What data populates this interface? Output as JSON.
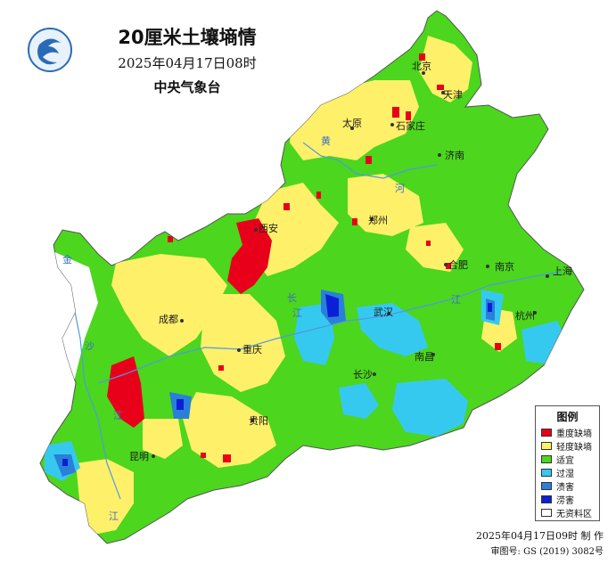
{
  "title": {
    "main": "20厘米土壤墒情",
    "time": "2025年04月17日08时",
    "org": "中央气象台"
  },
  "legend": {
    "title": "图例",
    "items": [
      {
        "label": "重度缺墒",
        "color": "#e8001a"
      },
      {
        "label": "轻度缺墒",
        "color": "#fff06a"
      },
      {
        "label": "适宜",
        "color": "#4cd61e"
      },
      {
        "label": "过湿",
        "color": "#36c9f0"
      },
      {
        "label": "渍害",
        "color": "#2a7fd9"
      },
      {
        "label": "涝害",
        "color": "#0a1fd6"
      },
      {
        "label": "无资料区",
        "color": "#ffffff"
      }
    ]
  },
  "cities": [
    {
      "name": "北京"
    },
    {
      "name": "天津"
    },
    {
      "name": "太原"
    },
    {
      "name": "石家庄"
    },
    {
      "name": "济南"
    },
    {
      "name": "郑州"
    },
    {
      "name": "西安"
    },
    {
      "name": "合肥"
    },
    {
      "name": "南京"
    },
    {
      "name": "上海"
    },
    {
      "name": "成都"
    },
    {
      "name": "武汉"
    },
    {
      "name": "杭州"
    },
    {
      "name": "重庆"
    },
    {
      "name": "南昌"
    },
    {
      "name": "长沙"
    },
    {
      "name": "贵阳"
    },
    {
      "name": "昆明"
    }
  ],
  "rivers": [
    "黄",
    "河",
    "江",
    "长",
    "江",
    "金",
    "沙",
    "江",
    "江"
  ],
  "footer": {
    "made": "2025年04月17日09时 制 作",
    "review": "审图号: GS (2019) 3082号"
  }
}
